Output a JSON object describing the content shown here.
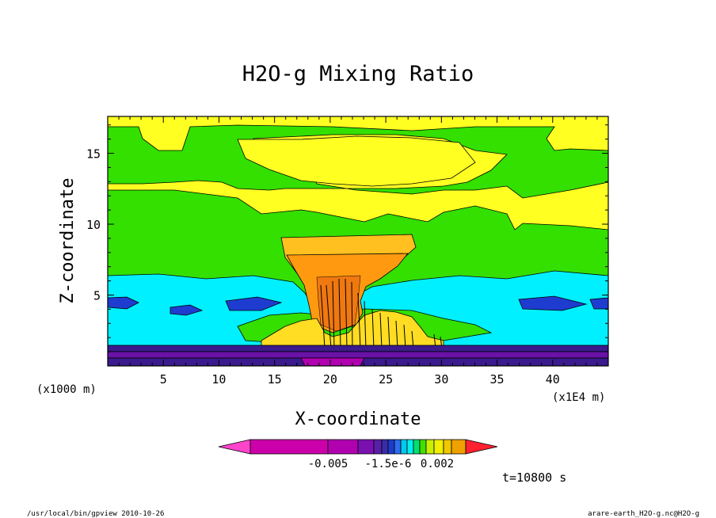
{
  "chart_data": {
    "type": "heatmap",
    "title": "H2O-g Mixing Ratio",
    "xlabel": "X-coordinate",
    "ylabel": "Z-coordinate",
    "x_unit": "(x1000 m)",
    "x_unit2": "(x1E4 m)",
    "xlim": [
      0,
      45
    ],
    "ylim": [
      0,
      17.6
    ],
    "x_ticks": [
      5,
      10,
      15,
      20,
      25,
      30,
      35,
      40
    ],
    "y_ticks": [
      5,
      10,
      15
    ],
    "colorbar_labels": [
      "-0.005",
      "-1.5e-6",
      "0.002"
    ],
    "colorbar_colors": [
      "#ff44cc",
      "#cc00aa",
      "#b000b0",
      "#7b10b0",
      "#5a1fa8",
      "#3a2ca8",
      "#1e3cc8",
      "#2e6cf0",
      "#00c8f0",
      "#00f0f0",
      "#00e070",
      "#40e000",
      "#c8f000",
      "#f0f000",
      "#f0c800",
      "#f0a000",
      "#f07800",
      "#ff2030"
    ],
    "annotation": "t=10800 s",
    "contour_levels": {
      "dark_purple": "#3a1a8c",
      "purple": "#6a12a8",
      "blue": "#1e3cd0",
      "cyan": "#00f0ff",
      "green": "#33e000",
      "yellow": "#ffff22",
      "orange_light": "#ffc020",
      "orange": "#ff9a10",
      "orange_dark": "#f07810"
    }
  },
  "footer": {
    "left": "/usr/local/bin/gpview  2010-10-26",
    "right": "arare-earth_H2O-g.nc@H2O-g"
  }
}
